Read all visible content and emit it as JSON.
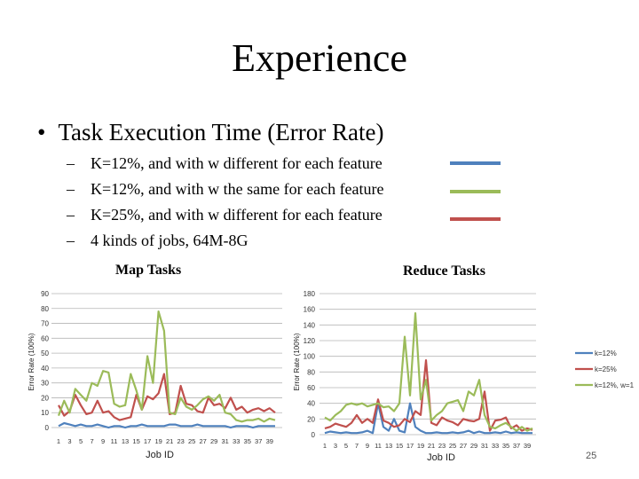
{
  "slide": {
    "title": "Experience",
    "bullet": "Task Execution Time (Error Rate)",
    "bullet_marker": "•",
    "sub_marker": "–",
    "sub_bullets": [
      {
        "text": "K=12%, and with w different for each feature",
        "color": "#4f81bd"
      },
      {
        "text": "K=12%, and with w the same for each feature",
        "color": "#9bbb59"
      },
      {
        "text": "K=25%, and with w different for each feature",
        "color": "#c0504d"
      },
      {
        "text": "4 kinds of jobs, 64M-8G",
        "color": null
      }
    ],
    "page_number": "25"
  },
  "chart_data": [
    {
      "type": "line",
      "title": "Map Tasks",
      "xlabel": "Job ID",
      "ylabel": "Error Rate (100%)",
      "ylim": [
        0,
        90
      ],
      "yticks": [
        0,
        10,
        20,
        30,
        40,
        50,
        60,
        70,
        80,
        90
      ],
      "x": [
        1,
        2,
        3,
        4,
        5,
        6,
        7,
        8,
        9,
        10,
        11,
        12,
        13,
        14,
        15,
        16,
        17,
        18,
        19,
        20,
        21,
        22,
        23,
        24,
        25,
        26,
        27,
        28,
        29,
        30,
        31,
        32,
        33,
        34,
        35,
        36,
        37,
        38,
        39,
        40
      ],
      "xtick_labels": [
        "1",
        "3",
        "5",
        "7",
        "9",
        "11",
        "13",
        "15",
        "17",
        "19",
        "21",
        "23",
        "25",
        "27",
        "29",
        "31",
        "33",
        "35",
        "37",
        "39"
      ],
      "grid": true,
      "series": [
        {
          "color": "#4f81bd",
          "values": [
            1,
            3,
            2,
            1,
            2,
            1,
            1,
            2,
            1,
            0,
            1,
            1,
            0,
            1,
            1,
            2,
            1,
            1,
            1,
            1,
            2,
            2,
            1,
            1,
            1,
            2,
            1,
            1,
            1,
            1,
            1,
            0,
            1,
            1,
            1,
            0,
            1,
            1,
            1,
            1
          ]
        },
        {
          "color": "#c0504d",
          "values": [
            15,
            8,
            11,
            22,
            15,
            9,
            10,
            18,
            10,
            11,
            7,
            5,
            6,
            7,
            22,
            12,
            21,
            19,
            23,
            36,
            9,
            10,
            28,
            16,
            15,
            11,
            10,
            20,
            15,
            16,
            13,
            20,
            12,
            14,
            10,
            12,
            13,
            11,
            13,
            10
          ]
        },
        {
          "color": "#9bbb59",
          "values": [
            8,
            18,
            10,
            26,
            22,
            18,
            30,
            28,
            38,
            37,
            16,
            14,
            15,
            36,
            25,
            12,
            48,
            30,
            78,
            65,
            10,
            9,
            20,
            14,
            12,
            15,
            19,
            21,
            18,
            22,
            10,
            9,
            5,
            4,
            5,
            5,
            6,
            4,
            6,
            5
          ]
        }
      ]
    },
    {
      "type": "line",
      "title": "Reduce Tasks",
      "xlabel": "Job ID",
      "ylabel": "Error Rate (100%)",
      "ylim": [
        0,
        180
      ],
      "yticks": [
        0,
        20,
        40,
        60,
        80,
        100,
        120,
        140,
        160,
        180
      ],
      "x": [
        1,
        2,
        3,
        4,
        5,
        6,
        7,
        8,
        9,
        10,
        11,
        12,
        13,
        14,
        15,
        16,
        17,
        18,
        19,
        20,
        21,
        22,
        23,
        24,
        25,
        26,
        27,
        28,
        29,
        30,
        31,
        32,
        33,
        34,
        35,
        36,
        37,
        38,
        39,
        40
      ],
      "xtick_labels": [
        "1",
        "3",
        "5",
        "7",
        "9",
        "11",
        "13",
        "15",
        "17",
        "19",
        "21",
        "23",
        "25",
        "27",
        "29",
        "31",
        "33",
        "35",
        "37",
        "39"
      ],
      "grid": true,
      "legend_position": "right",
      "series": [
        {
          "name": "k=12%",
          "color": "#4f81bd",
          "values": [
            2,
            4,
            3,
            2,
            3,
            2,
            2,
            3,
            5,
            2,
            40,
            10,
            5,
            20,
            5,
            3,
            40,
            10,
            5,
            2,
            2,
            3,
            2,
            2,
            3,
            2,
            3,
            5,
            2,
            4,
            2,
            2,
            3,
            2,
            4,
            2,
            3,
            2,
            2,
            2
          ]
        },
        {
          "name": "k=25%",
          "color": "#c0504d",
          "values": [
            8,
            10,
            14,
            12,
            10,
            15,
            25,
            15,
            20,
            15,
            45,
            18,
            15,
            10,
            12,
            20,
            16,
            30,
            25,
            95,
            15,
            12,
            22,
            18,
            16,
            12,
            20,
            18,
            17,
            20,
            55,
            5,
            18,
            19,
            22,
            8,
            12,
            5,
            8,
            6
          ]
        },
        {
          "name": "k=12%, w=1",
          "color": "#9bbb59",
          "values": [
            22,
            18,
            25,
            30,
            38,
            40,
            38,
            40,
            36,
            38,
            40,
            35,
            36,
            30,
            40,
            125,
            50,
            155,
            45,
            70,
            18,
            25,
            30,
            40,
            42,
            44,
            30,
            55,
            50,
            70,
            25,
            10,
            8,
            12,
            15,
            10,
            5,
            10,
            5,
            8
          ]
        }
      ]
    }
  ]
}
